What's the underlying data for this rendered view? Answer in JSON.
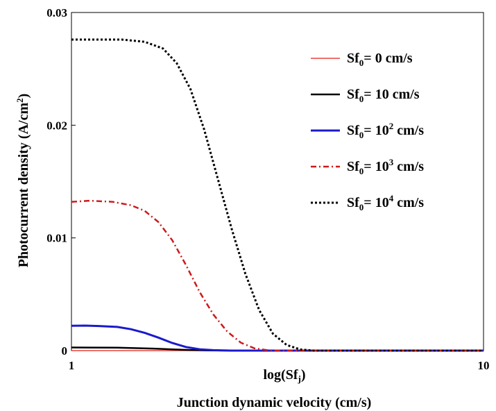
{
  "chart_data": {
    "type": "line",
    "title": "",
    "xlabel_main": "log(Sf",
    "xlabel_sub": "j",
    "xlabel_end": ")",
    "xlabel_bottom": "Junction dynamic velocity (cm/s)",
    "ylabel": "Photocurrent density (A/cm",
    "ylabel_sup": "2",
    "ylabel_end": ")",
    "xlim": [
      1,
      10
    ],
    "ylim": [
      0,
      0.03
    ],
    "x_ticks": [
      "1",
      "10"
    ],
    "y_ticks": [
      {
        "value": 0,
        "label": "0"
      },
      {
        "value": 0.01,
        "label": "0.01"
      },
      {
        "value": 0.02,
        "label": "0.02"
      },
      {
        "value": 0.03,
        "label": "0.03"
      }
    ],
    "legend_position": "top-right",
    "series": [
      {
        "name_base": "Sf",
        "name_sub": "0",
        "name_mid": "= 0 cm/s",
        "name_sup": "",
        "name_end": "",
        "color": "#e8413a",
        "dash": "none",
        "width": 1.5,
        "points": [
          [
            1.0,
            0.0
          ],
          [
            10.0,
            0.0
          ]
        ]
      },
      {
        "name_base": "Sf",
        "name_sub": "0",
        "name_mid": "= 10 cm/s",
        "name_sup": "",
        "name_end": "",
        "color": "#000000",
        "dash": "none",
        "width": 2.5,
        "points": [
          [
            1.0,
            0.00028
          ],
          [
            2.0,
            0.00026
          ],
          [
            2.8,
            0.00018
          ],
          [
            3.4,
            8e-05
          ],
          [
            4.0,
            2e-05
          ],
          [
            4.5,
            0.0
          ],
          [
            10.0,
            0.0
          ]
        ]
      },
      {
        "name_base": "Sf",
        "name_sub": "0",
        "name_mid": "= 10",
        "name_sup": "2",
        "name_end": " cm/s",
        "color": "#1a1acc",
        "dash": "none",
        "width": 3,
        "points": [
          [
            1.0,
            0.0022
          ],
          [
            1.3,
            0.00222
          ],
          [
            1.6,
            0.00218
          ],
          [
            2.0,
            0.0021
          ],
          [
            2.3,
            0.0019
          ],
          [
            2.6,
            0.00158
          ],
          [
            2.9,
            0.00115
          ],
          [
            3.2,
            0.00068
          ],
          [
            3.5,
            0.00032
          ],
          [
            3.8,
            0.00012
          ],
          [
            4.1,
            4e-05
          ],
          [
            4.5,
            0.0
          ],
          [
            10.0,
            0.0
          ]
        ]
      },
      {
        "name_base": "Sf",
        "name_sub": "0",
        "name_mid": "= 10",
        "name_sup": "3",
        "name_end": " cm/s",
        "color": "#cc1a1a",
        "dash": "8 4 2 4",
        "width": 2.5,
        "points": [
          [
            1.0,
            0.0132
          ],
          [
            1.4,
            0.0133
          ],
          [
            1.9,
            0.0132
          ],
          [
            2.3,
            0.0129
          ],
          [
            2.6,
            0.0124
          ],
          [
            2.9,
            0.0114
          ],
          [
            3.2,
            0.0098
          ],
          [
            3.5,
            0.0076
          ],
          [
            3.8,
            0.0052
          ],
          [
            4.1,
            0.0032
          ],
          [
            4.4,
            0.0017
          ],
          [
            4.7,
            0.0007
          ],
          [
            5.0,
            0.0002
          ],
          [
            5.3,
            3e-05
          ],
          [
            5.6,
            0.0
          ],
          [
            10.0,
            0.0
          ]
        ]
      },
      {
        "name_base": "Sf",
        "name_sub": "0",
        "name_mid": "= 10",
        "name_sup": "4",
        "name_end": " cm/s",
        "color": "#000000",
        "dash": "3 3",
        "width": 3,
        "points": [
          [
            1.0,
            0.0276
          ],
          [
            1.6,
            0.0276
          ],
          [
            2.1,
            0.0276
          ],
          [
            2.6,
            0.0274
          ],
          [
            3.0,
            0.0268
          ],
          [
            3.3,
            0.0255
          ],
          [
            3.6,
            0.0232
          ],
          [
            3.9,
            0.0196
          ],
          [
            4.2,
            0.0152
          ],
          [
            4.5,
            0.0108
          ],
          [
            4.8,
            0.0068
          ],
          [
            5.1,
            0.0036
          ],
          [
            5.4,
            0.0015
          ],
          [
            5.7,
            0.0005
          ],
          [
            6.0,
            0.0001
          ],
          [
            6.3,
            0.0
          ],
          [
            10.0,
            0.0
          ]
        ]
      }
    ]
  }
}
